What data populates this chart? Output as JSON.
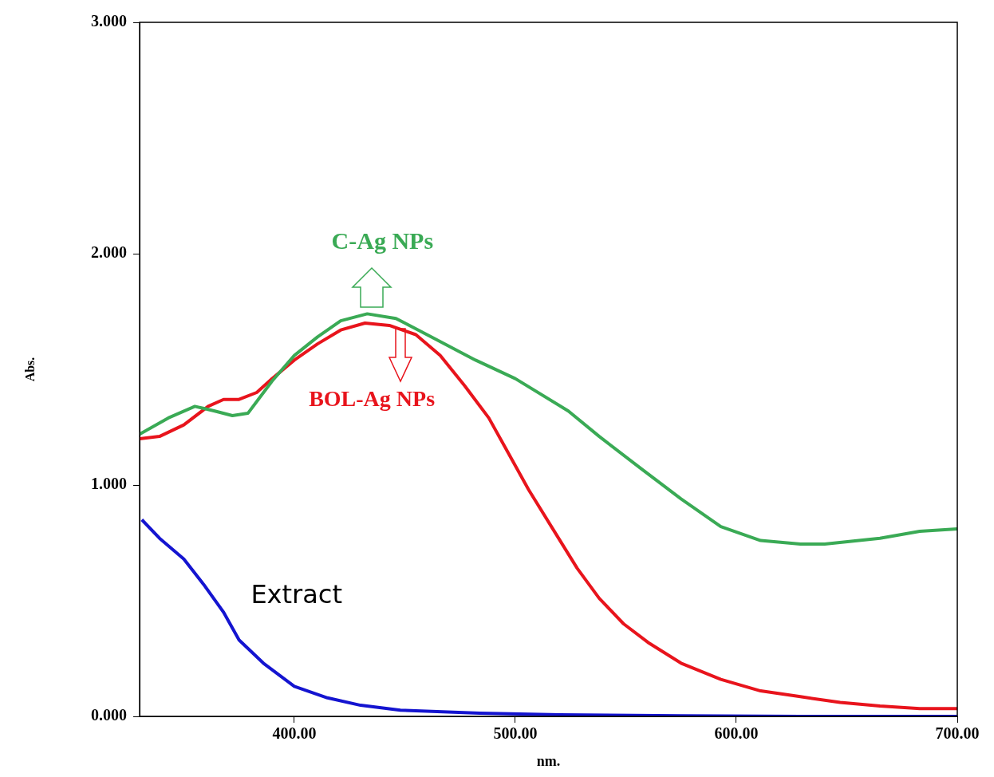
{
  "chart_data": {
    "type": "line",
    "xlabel": "nm.",
    "ylabel": "Abs.",
    "xlim": [
      330,
      700
    ],
    "ylim": [
      0,
      3
    ],
    "xticks": [
      {
        "value": 400,
        "label": "400.00"
      },
      {
        "value": 500,
        "label": "500.00"
      },
      {
        "value": 600,
        "label": "600.00"
      },
      {
        "value": 700,
        "label": "700.00"
      }
    ],
    "yticks": [
      {
        "value": 0,
        "label": "0.000"
      },
      {
        "value": 1,
        "label": "1.000"
      },
      {
        "value": 2,
        "label": "2.000"
      },
      {
        "value": 3,
        "label": "3.000"
      }
    ],
    "annotations": [
      {
        "text": "C-Ag NPs",
        "x": 433,
        "y": 1.74
      },
      {
        "text": "BOL-Ag NPs",
        "x": 447,
        "y": 1.69
      },
      "Extract"
    ],
    "grid": false,
    "legend": false,
    "marker": "none",
    "line_style": "solid",
    "series": [
      {
        "color": "#3aaa55",
        "x": [
          330,
          343,
          355,
          364,
          372,
          379,
          390,
          400,
          410.5,
          421,
          433,
          446,
          464,
          482,
          500,
          524,
          538,
          557,
          575,
          593,
          611,
          629,
          640,
          665,
          683,
          700
        ],
        "values": [
          1.22,
          1.29,
          1.34,
          1.32,
          1.3,
          1.31,
          1.45,
          1.56,
          1.64,
          1.71,
          1.74,
          1.72,
          1.63,
          1.54,
          1.46,
          1.32,
          1.21,
          1.07,
          0.94,
          0.82,
          0.76,
          0.745,
          0.745,
          0.77,
          0.8,
          0.81
        ]
      },
      {
        "color": "#e8141c",
        "x": [
          330,
          339,
          350,
          361,
          368,
          375,
          383,
          390,
          400,
          410.5,
          421,
          432,
          443,
          455,
          466,
          477,
          488,
          495,
          506,
          517,
          528,
          538,
          549,
          560,
          575,
          593,
          611,
          629,
          647,
          665,
          683,
          700
        ],
        "values": [
          1.2,
          1.21,
          1.26,
          1.34,
          1.37,
          1.37,
          1.4,
          1.46,
          1.54,
          1.61,
          1.67,
          1.7,
          1.69,
          1.65,
          1.56,
          1.43,
          1.29,
          1.17,
          0.98,
          0.81,
          0.64,
          0.51,
          0.4,
          0.32,
          0.23,
          0.16,
          0.11,
          0.085,
          0.06,
          0.045,
          0.034,
          0.034
        ]
      },
      {
        "color": "#1414d0",
        "x": [
          331,
          339,
          350,
          359,
          368,
          375,
          386,
          400,
          415,
          430,
          448,
          484,
          520,
          575,
          629,
          700
        ],
        "values": [
          0.85,
          0.77,
          0.68,
          0.57,
          0.45,
          0.33,
          0.23,
          0.13,
          0.08,
          0.048,
          0.027,
          0.014,
          0.007,
          0.003,
          0,
          0
        ]
      }
    ]
  }
}
